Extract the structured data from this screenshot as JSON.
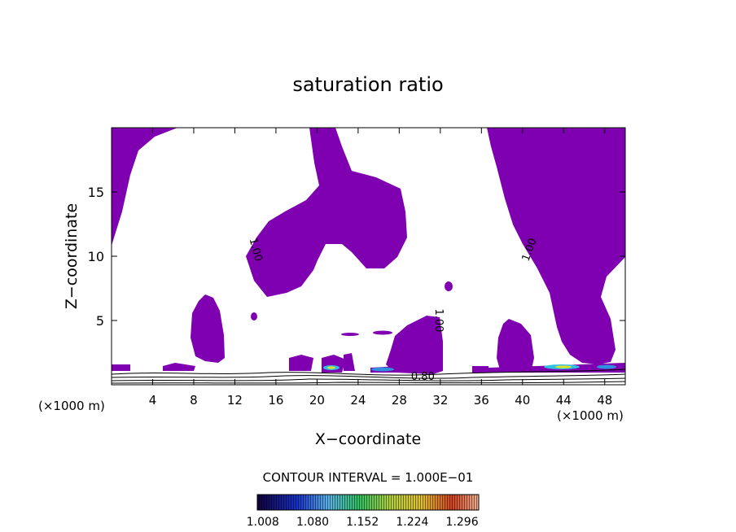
{
  "chart_data": {
    "type": "heatmap",
    "title": "saturation ratio",
    "xlabel": "X−coordinate",
    "ylabel": "Z−coordinate",
    "x_unit_left": "(×1000 m)",
    "x_unit_right": "(×1000 m)",
    "xlim": [
      0,
      50
    ],
    "ylim": [
      0,
      20
    ],
    "x_ticks": [
      4,
      8,
      12,
      16,
      20,
      24,
      28,
      32,
      36,
      40,
      44,
      48
    ],
    "y_ticks": [
      5,
      10,
      15
    ],
    "contour_labels": [
      {
        "text": "1.00",
        "x": 14.0,
        "y": 10.5,
        "angle": 75
      },
      {
        "text": "1.00",
        "x": 40.7,
        "y": 10.5,
        "angle": -70
      },
      {
        "text": "1.00",
        "x": 31.8,
        "y": 5.0,
        "angle": 90
      },
      {
        "text": "0.80",
        "x": 30.3,
        "y": 0.6,
        "angle": 0
      }
    ],
    "contour_interval_text": "CONTOUR INTERVAL = 1.000E−01",
    "colorbar": {
      "min": 1.0,
      "max": 1.32,
      "tick_labels": [
        "1.008",
        "1.080",
        "1.152",
        "1.224",
        "1.296"
      ]
    },
    "fill_color": "#7f00b0",
    "grid": false
  }
}
